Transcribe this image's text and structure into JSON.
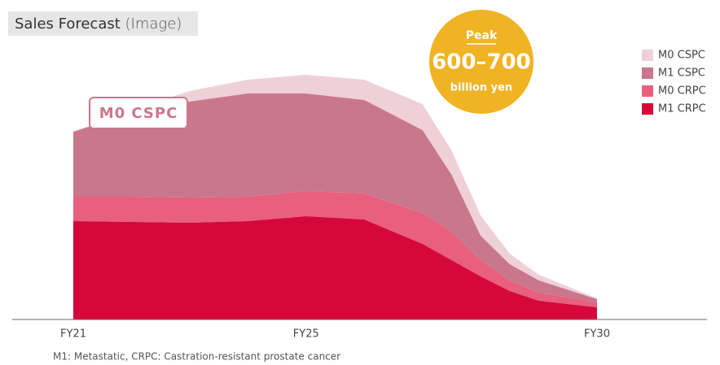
{
  "chart_data": {
    "type": "stacked-area",
    "title": "Sales Forecast",
    "subtitle": "(Image)",
    "x": [
      21,
      22,
      23,
      24,
      25,
      26,
      27,
      27.5,
      28,
      28.5,
      29,
      30
    ],
    "xlim": [
      21,
      30
    ],
    "xticks": [
      {
        "value": 21,
        "label": "FY21"
      },
      {
        "value": 25,
        "label": "FY25"
      },
      {
        "value": 30,
        "label": "FY30"
      }
    ],
    "ylim": [
      0,
      330
    ],
    "series": [
      {
        "name": "M0 CSPC",
        "color": "#f0d0d8",
        "values": [
          0,
          5,
          13,
          17,
          23,
          25,
          32,
          30,
          25,
          13,
          7,
          1
        ]
      },
      {
        "name": "M1 CSPC",
        "color": "#c9778c",
        "values": [
          80,
          102,
          118,
          127,
          120,
          115,
          102,
          70,
          30,
          20,
          15,
          4
        ]
      },
      {
        "name": "M0 CRPC",
        "color": "#e8607e",
        "values": [
          30,
          31,
          31,
          30,
          31,
          32,
          38,
          35,
          20,
          13,
          10,
          6
        ]
      },
      {
        "name": "M1 CRPC",
        "color": "#d6083b",
        "values": [
          121,
          120,
          119,
          121,
          127,
          123,
          93,
          73,
          53,
          35,
          23,
          15
        ]
      }
    ],
    "legend": "top-right",
    "badge": {
      "heading": "Peak",
      "value": "600–700",
      "unit": "billion yen"
    },
    "annotation": "M0 CSPC",
    "footnote": "M1: Metastatic, CRPC: Castration-resistant prostate cancer"
  }
}
